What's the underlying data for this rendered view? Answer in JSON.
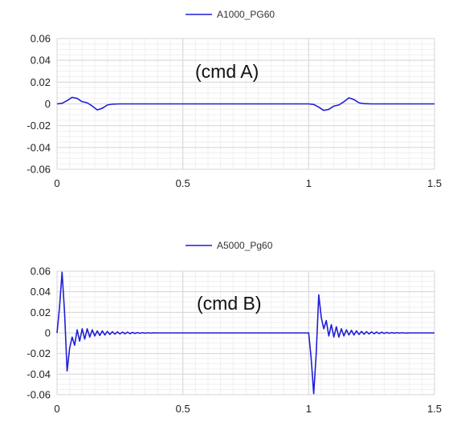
{
  "chart_data": [
    {
      "type": "line",
      "series": [
        {
          "name": "A1000_PG60",
          "color": "#1f1fd6",
          "x": [
            0,
            0.02,
            0.04,
            0.06,
            0.08,
            0.1,
            0.12,
            0.14,
            0.16,
            0.18,
            0.2,
            0.22,
            0.25,
            0.3,
            0.4,
            0.5,
            0.6,
            0.7,
            0.8,
            0.9,
            1.0,
            1.02,
            1.04,
            1.06,
            1.08,
            1.1,
            1.12,
            1.14,
            1.16,
            1.18,
            1.2,
            1.22,
            1.25,
            1.3,
            1.4,
            1.5
          ],
          "y": [
            0,
            0.0005,
            0.003,
            0.006,
            0.005,
            0.002,
            0.001,
            -0.002,
            -0.0055,
            -0.004,
            -0.001,
            -0.0002,
            0,
            0,
            0,
            0,
            0,
            0,
            0,
            0,
            0,
            -0.0005,
            -0.003,
            -0.006,
            -0.005,
            -0.002,
            -0.001,
            0.002,
            0.0055,
            0.004,
            0.001,
            0.0002,
            0,
            0,
            0,
            0
          ]
        }
      ],
      "xlim": [
        0,
        1.5
      ],
      "ylim": [
        -0.06,
        0.06
      ],
      "x_ticks": [
        "0",
        "0.5",
        "1",
        "1.5"
      ],
      "y_ticks": [
        "0.06",
        "0.04",
        "0.02",
        "0",
        "-0.02",
        "-0.04",
        "-0.06"
      ],
      "annotation": "(cmd A)",
      "legend_position": "top",
      "grid": true
    },
    {
      "type": "line",
      "series": [
        {
          "name": "A5000_Pg60",
          "color": "#1f1fd6",
          "x": [
            0,
            0.01,
            0.02,
            0.03,
            0.04,
            0.05,
            0.06,
            0.07,
            0.08,
            0.09,
            0.1,
            0.11,
            0.12,
            0.13,
            0.14,
            0.15,
            0.16,
            0.17,
            0.18,
            0.19,
            0.2,
            0.21,
            0.22,
            0.23,
            0.24,
            0.25,
            0.26,
            0.27,
            0.28,
            0.29,
            0.3,
            0.31,
            0.32,
            0.33,
            0.34,
            0.35,
            0.36,
            0.37,
            0.38,
            0.4,
            0.5,
            0.6,
            0.7,
            0.8,
            0.9,
            1.0,
            1.01,
            1.02,
            1.03,
            1.04,
            1.05,
            1.06,
            1.07,
            1.08,
            1.09,
            1.1,
            1.11,
            1.12,
            1.13,
            1.14,
            1.15,
            1.16,
            1.17,
            1.18,
            1.19,
            1.2,
            1.21,
            1.22,
            1.23,
            1.24,
            1.25,
            1.26,
            1.27,
            1.28,
            1.29,
            1.3,
            1.31,
            1.32,
            1.33,
            1.34,
            1.35,
            1.36,
            1.37,
            1.38,
            1.4,
            1.5
          ],
          "y": [
            0,
            0.025,
            0.059,
            0.02,
            -0.037,
            -0.015,
            -0.004,
            -0.012,
            0.003,
            -0.008,
            0.004,
            -0.006,
            0.004,
            -0.004,
            0.003,
            -0.003,
            0.002,
            -0.0025,
            0.002,
            -0.002,
            0.0015,
            -0.0015,
            0.0012,
            -0.0012,
            0.001,
            -0.001,
            0.0008,
            -0.0008,
            0.0007,
            -0.0007,
            0.0005,
            -0.0005,
            0.0004,
            -0.0004,
            0.0003,
            -0.0003,
            0.0002,
            -0.0002,
            0.0001,
            0,
            0,
            0,
            0,
            0,
            0,
            0,
            -0.025,
            -0.059,
            -0.02,
            0.037,
            0.015,
            0.004,
            0.012,
            -0.003,
            0.008,
            -0.004,
            0.006,
            -0.004,
            0.004,
            -0.003,
            0.003,
            -0.002,
            0.0025,
            -0.002,
            0.002,
            -0.0015,
            0.0015,
            -0.0012,
            0.0012,
            -0.001,
            0.001,
            -0.0008,
            0.0008,
            -0.0007,
            0.0007,
            -0.0005,
            0.0005,
            -0.0004,
            0.0004,
            -0.0003,
            0.0003,
            -0.0002,
            0.0002,
            -0.0001,
            0,
            0
          ]
        }
      ],
      "xlim": [
        0,
        1.5
      ],
      "ylim": [
        -0.06,
        0.06
      ],
      "x_ticks": [
        "0",
        "0.5",
        "1",
        "1.5"
      ],
      "y_ticks": [
        "0.06",
        "0.04",
        "0.02",
        "0",
        "-0.02",
        "-0.04",
        "-0.06"
      ],
      "annotation": "(cmd B)",
      "legend_position": "top",
      "grid": true
    }
  ]
}
